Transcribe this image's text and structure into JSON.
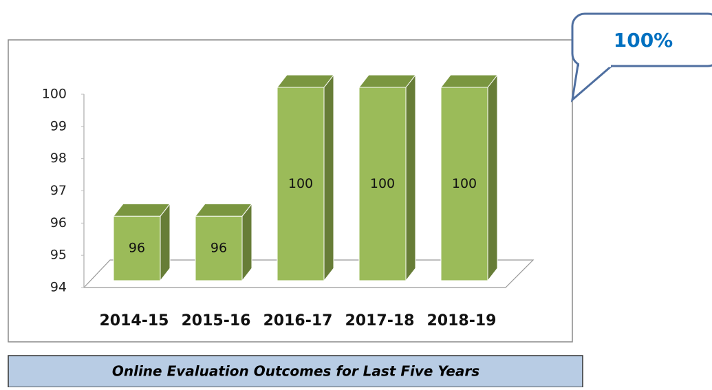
{
  "chart_data": {
    "type": "bar3d",
    "categories": [
      "2014-15",
      "2015-16",
      "2016-17",
      "2017-18",
      "2018-19"
    ],
    "values": [
      96,
      96,
      100,
      100,
      100
    ],
    "color": "#9bbb59",
    "ylim": [
      94,
      100
    ],
    "yticks": [
      94,
      95,
      96,
      97,
      98,
      99,
      100
    ],
    "annotation": "100%",
    "caption": "Online Evaluation Outcomes for Last Five Years"
  }
}
